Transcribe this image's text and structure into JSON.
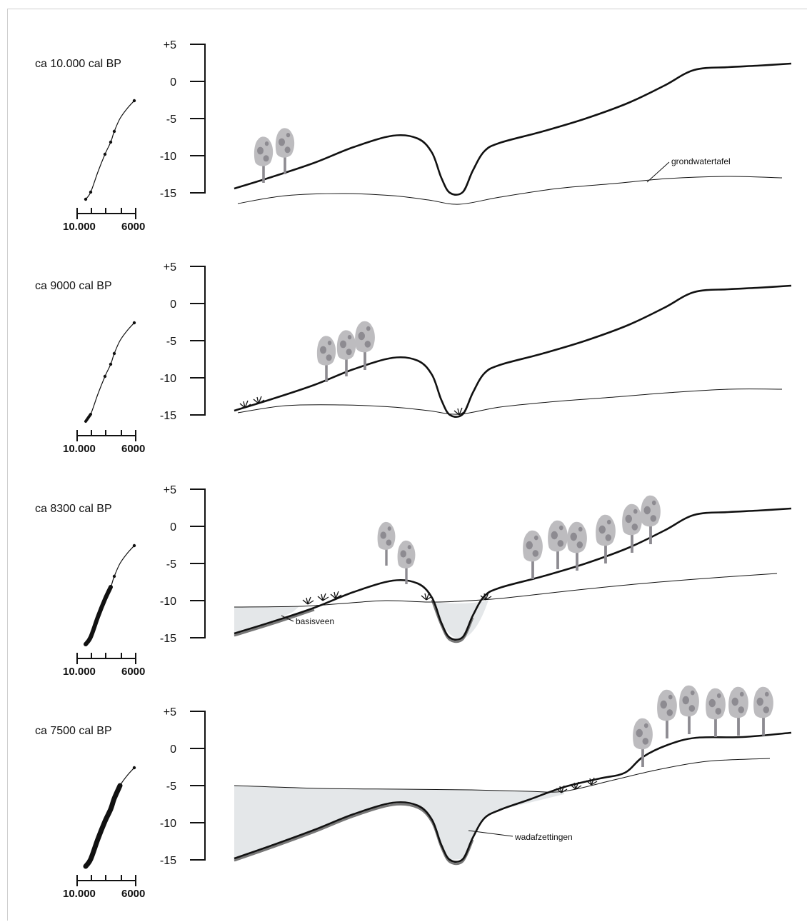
{
  "yaxis_ticks": [
    "+5",
    "0",
    "-5",
    "-10",
    "-15"
  ],
  "mini_axis": {
    "left_label": "10.000",
    "right_label": "6000"
  },
  "panels": [
    {
      "label": "ca 10.000 cal BP",
      "annotations": [
        {
          "text": "grondwatertafel"
        }
      ]
    },
    {
      "label": "ca 9000 cal BP",
      "annotations": []
    },
    {
      "label": "ca 8300 cal BP",
      "annotations": [
        {
          "text": "basisveen"
        }
      ]
    },
    {
      "label": "ca 7500 cal BP",
      "annotations": [
        {
          "text": "wadafzettingen"
        }
      ]
    }
  ],
  "colors": {
    "terrain": "#111111",
    "water": "#e4e7e9",
    "tree_crown": "#bdbcbf",
    "tree_spot": "#8d8b91",
    "tree_trunk": "#8d8b91"
  }
}
